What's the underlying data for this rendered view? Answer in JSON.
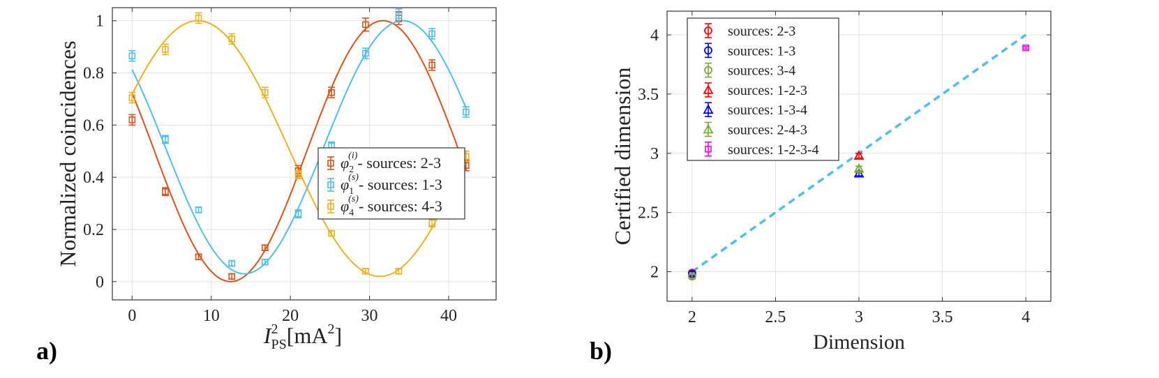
{
  "panel_labels": {
    "a": "a)",
    "b": "b)"
  },
  "chart_data": [
    {
      "type": "scatter",
      "panel": "a)",
      "title": "",
      "xlabel": "I_PS^2 [mA^2]",
      "xlabel_parts": {
        "base": "I",
        "sup": "2",
        "sub": "PS",
        "unit_open": "[mA",
        "unit_sup": "2",
        "unit_close": "]"
      },
      "ylabel": "Normalized coincidences",
      "xlim": [
        -2.5,
        46
      ],
      "ylim": [
        -0.07,
        1.05
      ],
      "xticks": [
        0,
        10,
        20,
        30,
        40
      ],
      "yticks": [
        0,
        0.2,
        0.4,
        0.6,
        0.8,
        1
      ],
      "xtick_labels": [
        "0",
        "10",
        "20",
        "30",
        "40"
      ],
      "ytick_labels": [
        "0",
        "0.2",
        "0.4",
        "0.6",
        "0.8",
        "1"
      ],
      "grid": true,
      "legend_position": "center-right",
      "x": [
        0,
        4.2,
        8.4,
        12.6,
        16.8,
        21.0,
        25.2,
        29.5,
        33.7,
        37.9,
        42.2
      ],
      "series": [
        {
          "name": "sources: 2-3",
          "legend_sym": "φ",
          "legend_sub": "2",
          "legend_sup": "(i)",
          "legend_suffix": "- sources: 2-3",
          "color": "#D95319",
          "values": [
            0.62,
            0.345,
            0.095,
            0.02,
            0.13,
            0.425,
            0.725,
            0.985,
            1.01,
            0.83,
            0.445
          ],
          "errors": [
            0.02,
            0.015,
            0.01,
            0.01,
            0.01,
            0.02,
            0.02,
            0.025,
            0.025,
            0.02,
            0.02
          ],
          "fit": {
            "offset": 0.5,
            "amplitude": 0.5,
            "period": 38.5,
            "peak_x": 31.7
          }
        },
        {
          "name": "sources: 1-3",
          "legend_sym": "φ",
          "legend_sub": "1",
          "legend_sup": "(s)",
          "legend_suffix": "- sources: 1-3",
          "color": "#4DBEEE",
          "values": [
            0.865,
            0.545,
            0.275,
            0.07,
            0.075,
            0.26,
            0.52,
            0.875,
            1.02,
            0.95,
            0.65
          ],
          "errors": [
            0.02,
            0.015,
            0.01,
            0.01,
            0.01,
            0.015,
            0.015,
            0.02,
            0.025,
            0.02,
            0.02
          ],
          "fit": {
            "offset": 0.515,
            "amplitude": 0.485,
            "period": 40.0,
            "peak_x": 34.2
          }
        },
        {
          "name": "sources: 4-3",
          "legend_sym": "φ",
          "legend_sub": "4",
          "legend_sup": "(s)",
          "legend_suffix": "- sources: 4-3",
          "color": "#EDB120",
          "values": [
            0.705,
            0.89,
            1.01,
            0.93,
            0.725,
            0.41,
            0.185,
            0.04,
            0.04,
            0.225,
            0.48
          ],
          "errors": [
            0.02,
            0.02,
            0.02,
            0.02,
            0.02,
            0.015,
            0.01,
            0.01,
            0.01,
            0.015,
            0.02
          ],
          "fit": {
            "offset": 0.51,
            "amplitude": 0.49,
            "period": 46.0,
            "peak_x": 8.3
          }
        }
      ]
    },
    {
      "type": "scatter",
      "panel": "b)",
      "title": "",
      "xlabel": "Dimension",
      "ylabel": "Certified dimension",
      "xlim": [
        1.85,
        4.15
      ],
      "ylim": [
        1.75,
        4.2
      ],
      "xticks": [
        2,
        2.5,
        3,
        3.5,
        4
      ],
      "yticks": [
        2,
        2.5,
        3,
        3.5,
        4
      ],
      "xtick_labels": [
        "2",
        "2.5",
        "3",
        "3.5",
        "4"
      ],
      "ytick_labels": [
        "2",
        "2.5",
        "3",
        "3.5",
        "4"
      ],
      "grid": true,
      "legend_position": "top-left",
      "reference_line": {
        "x": [
          2,
          4
        ],
        "y": [
          2,
          4
        ],
        "color": "#4DBEEE",
        "style": "dashed"
      },
      "series": [
        {
          "name": "sources: 2-3",
          "marker": "circle",
          "color": "#FF0000",
          "x": 2,
          "y": 1.99,
          "error": 0.02
        },
        {
          "name": "sources: 1-3",
          "marker": "circle",
          "color": "#0000FF",
          "x": 2,
          "y": 1.98,
          "error": 0.02
        },
        {
          "name": "sources: 3-4",
          "marker": "circle",
          "color": "#77AC30",
          "x": 2,
          "y": 1.96,
          "error": 0.02
        },
        {
          "name": "sources: 1-2-3",
          "marker": "triangle",
          "color": "#FF0000",
          "x": 3,
          "y": 2.98,
          "error": 0.02
        },
        {
          "name": "sources: 1-3-4",
          "marker": "triangle",
          "color": "#0000FF",
          "x": 3,
          "y": 2.83,
          "error": 0.02
        },
        {
          "name": "sources: 2-4-3",
          "marker": "triangle",
          "color": "#77AC30",
          "x": 3,
          "y": 2.87,
          "error": 0.02
        },
        {
          "name": "sources: 1-2-3-4",
          "marker": "square",
          "color": "#FF00FF",
          "x": 4,
          "y": 3.89,
          "error": 0.01
        }
      ]
    }
  ]
}
